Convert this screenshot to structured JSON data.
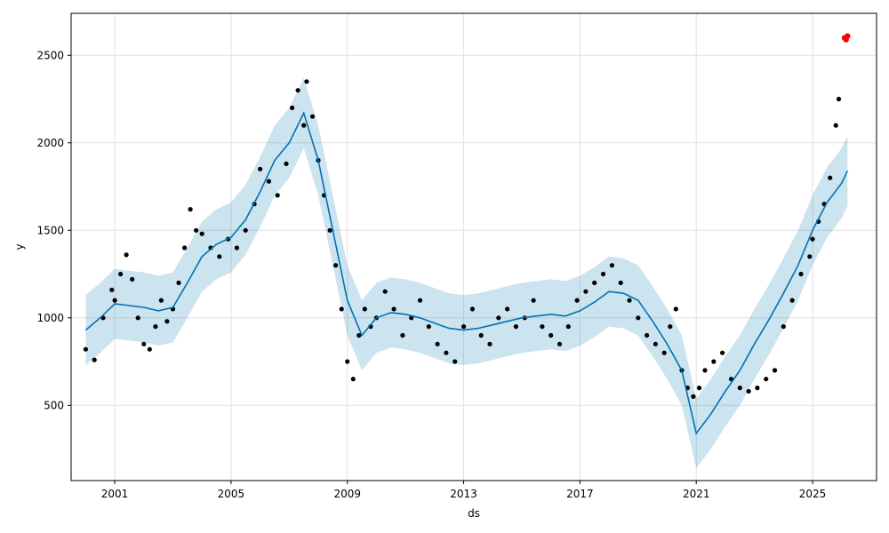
{
  "chart_data": {
    "type": "line",
    "xlabel": "ds",
    "ylabel": "y",
    "xlim": [
      1999.5,
      2027.2
    ],
    "ylim": [
      70,
      2740
    ],
    "grid": true,
    "x_ticks": [
      2001,
      2005,
      2009,
      2013,
      2017,
      2021,
      2025
    ],
    "x_tick_labels": [
      "2001",
      "2005",
      "2009",
      "2013",
      "2017",
      "2021",
      "2025"
    ],
    "y_ticks": [
      500,
      1000,
      1500,
      2000,
      2500
    ],
    "y_tick_labels": [
      "500",
      "1000",
      "1500",
      "2000",
      "2500"
    ],
    "colors": {
      "observed": "#000000",
      "forecast_line": "#0072b2",
      "interval_band": "#0072b2",
      "recent": "#ff0000",
      "grid": "#e0e0e0"
    },
    "series": [
      {
        "kind": "observed",
        "x": [
          2000.0,
          2000.3,
          2000.6,
          2000.9,
          2001.0,
          2001.2,
          2001.4,
          2001.6,
          2001.8,
          2002.0,
          2002.2,
          2002.4,
          2002.6,
          2002.8,
          2003.0,
          2003.2,
          2003.4,
          2003.6,
          2003.8,
          2004.0,
          2004.3,
          2004.6,
          2004.9,
          2005.2,
          2005.5,
          2005.8,
          2006.0,
          2006.3,
          2006.6,
          2006.9,
          2007.1,
          2007.3,
          2007.5,
          2007.6,
          2007.8,
          2008.0,
          2008.2,
          2008.4,
          2008.6,
          2008.8,
          2009.0,
          2009.2,
          2009.4,
          2009.6,
          2009.8,
          2010.0,
          2010.3,
          2010.6,
          2010.9,
          2011.2,
          2011.5,
          2011.8,
          2012.1,
          2012.4,
          2012.7,
          2013.0,
          2013.3,
          2013.6,
          2013.9,
          2014.2,
          2014.5,
          2014.8,
          2015.1,
          2015.4,
          2015.7,
          2016.0,
          2016.3,
          2016.6,
          2016.9,
          2017.2,
          2017.5,
          2017.8,
          2018.1,
          2018.4,
          2018.7,
          2019.0,
          2019.3,
          2019.6,
          2019.9,
          2020.1,
          2020.3,
          2020.5,
          2020.7,
          2020.9,
          2021.1,
          2021.3,
          2021.6,
          2021.9,
          2022.2,
          2022.5,
          2022.8,
          2023.1,
          2023.4,
          2023.7,
          2024.0,
          2024.3,
          2024.6,
          2024.9,
          2025.0,
          2025.2,
          2025.4,
          2025.6,
          2025.8,
          2025.9
        ],
        "y": [
          820,
          760,
          1000,
          1160,
          1100,
          1250,
          1360,
          1220,
          1000,
          850,
          820,
          950,
          1100,
          980,
          1050,
          1200,
          1400,
          1620,
          1500,
          1480,
          1400,
          1350,
          1450,
          1400,
          1500,
          1650,
          1850,
          1780,
          1700,
          1880,
          2200,
          2300,
          2100,
          2350,
          2150,
          1900,
          1700,
          1500,
          1300,
          1050,
          750,
          650,
          900,
          1050,
          950,
          1000,
          1150,
          1050,
          900,
          1000,
          1100,
          950,
          850,
          800,
          750,
          950,
          1050,
          900,
          850,
          1000,
          1050,
          950,
          1000,
          1100,
          950,
          900,
          850,
          950,
          1100,
          1150,
          1200,
          1250,
          1300,
          1200,
          1100,
          1000,
          900,
          850,
          800,
          950,
          1050,
          700,
          600,
          550,
          600,
          700,
          750,
          800,
          650,
          600,
          580,
          600,
          650,
          700,
          950,
          1100,
          1250,
          1350,
          1450,
          1550,
          1650,
          1800,
          2100,
          2250
        ]
      },
      {
        "kind": "recent",
        "x": [
          2026.1,
          2026.15,
          2026.2
        ],
        "y": [
          2600,
          2590,
          2610
        ]
      },
      {
        "kind": "forecast_line",
        "x": [
          2000.0,
          2000.5,
          2001.0,
          2001.5,
          2002.0,
          2002.5,
          2003.0,
          2003.5,
          2004.0,
          2004.5,
          2005.0,
          2005.5,
          2006.0,
          2006.5,
          2007.0,
          2007.5,
          2008.0,
          2008.5,
          2009.0,
          2009.5,
          2010.0,
          2010.5,
          2011.0,
          2011.5,
          2012.0,
          2012.5,
          2013.0,
          2013.5,
          2014.0,
          2014.5,
          2015.0,
          2015.5,
          2016.0,
          2016.5,
          2017.0,
          2017.5,
          2018.0,
          2018.5,
          2019.0,
          2019.5,
          2020.0,
          2020.5,
          2021.0,
          2021.5,
          2022.0,
          2022.5,
          2023.0,
          2023.5,
          2024.0,
          2024.5,
          2025.0,
          2025.5,
          2026.0,
          2026.2
        ],
        "y": [
          930,
          1000,
          1080,
          1070,
          1060,
          1040,
          1060,
          1200,
          1350,
          1420,
          1460,
          1560,
          1720,
          1900,
          2000,
          2170,
          1900,
          1500,
          1100,
          900,
          1000,
          1030,
          1020,
          1000,
          970,
          940,
          930,
          940,
          960,
          980,
          1000,
          1010,
          1020,
          1010,
          1040,
          1090,
          1150,
          1140,
          1100,
          980,
          850,
          700,
          340,
          450,
          580,
          700,
          850,
          990,
          1140,
          1300,
          1500,
          1660,
          1770,
          1840
        ]
      },
      {
        "kind": "interval_band",
        "x": [
          2000.0,
          2000.5,
          2001.0,
          2001.5,
          2002.0,
          2002.5,
          2003.0,
          2003.5,
          2004.0,
          2004.5,
          2005.0,
          2005.5,
          2006.0,
          2006.5,
          2007.0,
          2007.5,
          2008.0,
          2008.5,
          2009.0,
          2009.5,
          2010.0,
          2010.5,
          2011.0,
          2011.5,
          2012.0,
          2012.5,
          2013.0,
          2013.5,
          2014.0,
          2014.5,
          2015.0,
          2015.5,
          2016.0,
          2016.5,
          2017.0,
          2017.5,
          2018.0,
          2018.5,
          2019.0,
          2019.5,
          2020.0,
          2020.5,
          2021.0,
          2021.5,
          2022.0,
          2022.5,
          2023.0,
          2023.5,
          2024.0,
          2024.5,
          2025.0,
          2025.5,
          2026.0,
          2026.2
        ],
        "lower": [
          730,
          800,
          880,
          870,
          860,
          840,
          860,
          1000,
          1150,
          1220,
          1260,
          1360,
          1520,
          1700,
          1800,
          1970,
          1700,
          1300,
          900,
          700,
          800,
          830,
          820,
          800,
          770,
          740,
          730,
          740,
          760,
          780,
          800,
          810,
          820,
          810,
          840,
          890,
          950,
          940,
          900,
          780,
          650,
          500,
          140,
          250,
          380,
          500,
          650,
          790,
          940,
          1100,
          1300,
          1460,
          1570,
          1640
        ],
        "upper": [
          1130,
          1200,
          1280,
          1270,
          1260,
          1240,
          1260,
          1400,
          1550,
          1620,
          1660,
          1760,
          1920,
          2100,
          2200,
          2370,
          2100,
          1700,
          1300,
          1100,
          1200,
          1230,
          1220,
          1200,
          1170,
          1140,
          1130,
          1140,
          1160,
          1180,
          1200,
          1210,
          1220,
          1210,
          1240,
          1290,
          1350,
          1340,
          1300,
          1180,
          1050,
          900,
          540,
          650,
          780,
          900,
          1050,
          1190,
          1340,
          1500,
          1700,
          1860,
          1970,
          2040
        ]
      }
    ]
  }
}
